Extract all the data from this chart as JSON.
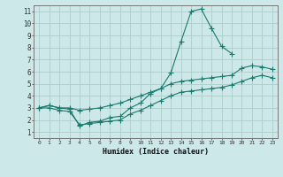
{
  "xlabel": "Humidex (Indice chaleur)",
  "bg_color": "#cde8e8",
  "grid_color": "#aecccc",
  "line_color": "#1a7a6e",
  "xlim": [
    -0.5,
    23.5
  ],
  "ylim": [
    0.5,
    11.5
  ],
  "xticks": [
    0,
    1,
    2,
    3,
    4,
    5,
    6,
    7,
    8,
    9,
    10,
    11,
    12,
    13,
    14,
    15,
    16,
    17,
    18,
    19,
    20,
    21,
    22,
    23
  ],
  "yticks": [
    1,
    2,
    3,
    4,
    5,
    6,
    7,
    8,
    9,
    10,
    11
  ],
  "line1_x": [
    0,
    1,
    2,
    3,
    4,
    5,
    6,
    7,
    8,
    9,
    10,
    11,
    12,
    13,
    14,
    15,
    16,
    17,
    18,
    19
  ],
  "line1_y": [
    3.0,
    3.2,
    3.0,
    2.9,
    1.5,
    1.8,
    1.9,
    2.2,
    2.3,
    3.0,
    3.4,
    4.2,
    4.6,
    5.9,
    8.5,
    11.0,
    11.2,
    9.6,
    8.1,
    7.5
  ],
  "line2_x": [
    0,
    1,
    2,
    3,
    4,
    5,
    6,
    7,
    8,
    9,
    10,
    11,
    12,
    13,
    14,
    15,
    16,
    17,
    18,
    19,
    20,
    21,
    22,
    23
  ],
  "line2_y": [
    3.0,
    3.2,
    3.0,
    3.0,
    2.8,
    2.9,
    3.0,
    3.2,
    3.4,
    3.7,
    4.0,
    4.3,
    4.6,
    5.0,
    5.2,
    5.3,
    5.4,
    5.5,
    5.6,
    5.7,
    6.3,
    6.5,
    6.4,
    6.2
  ],
  "line3_x": [
    0,
    1,
    2,
    3,
    4,
    5,
    6,
    7,
    8,
    9,
    10,
    11,
    12,
    13,
    14,
    15,
    16,
    17,
    18,
    19,
    20,
    21,
    22,
    23
  ],
  "line3_y": [
    3.0,
    3.0,
    2.8,
    2.7,
    1.6,
    1.7,
    1.8,
    1.9,
    2.0,
    2.5,
    2.8,
    3.2,
    3.6,
    4.0,
    4.3,
    4.4,
    4.5,
    4.6,
    4.7,
    4.9,
    5.2,
    5.5,
    5.7,
    5.5
  ]
}
